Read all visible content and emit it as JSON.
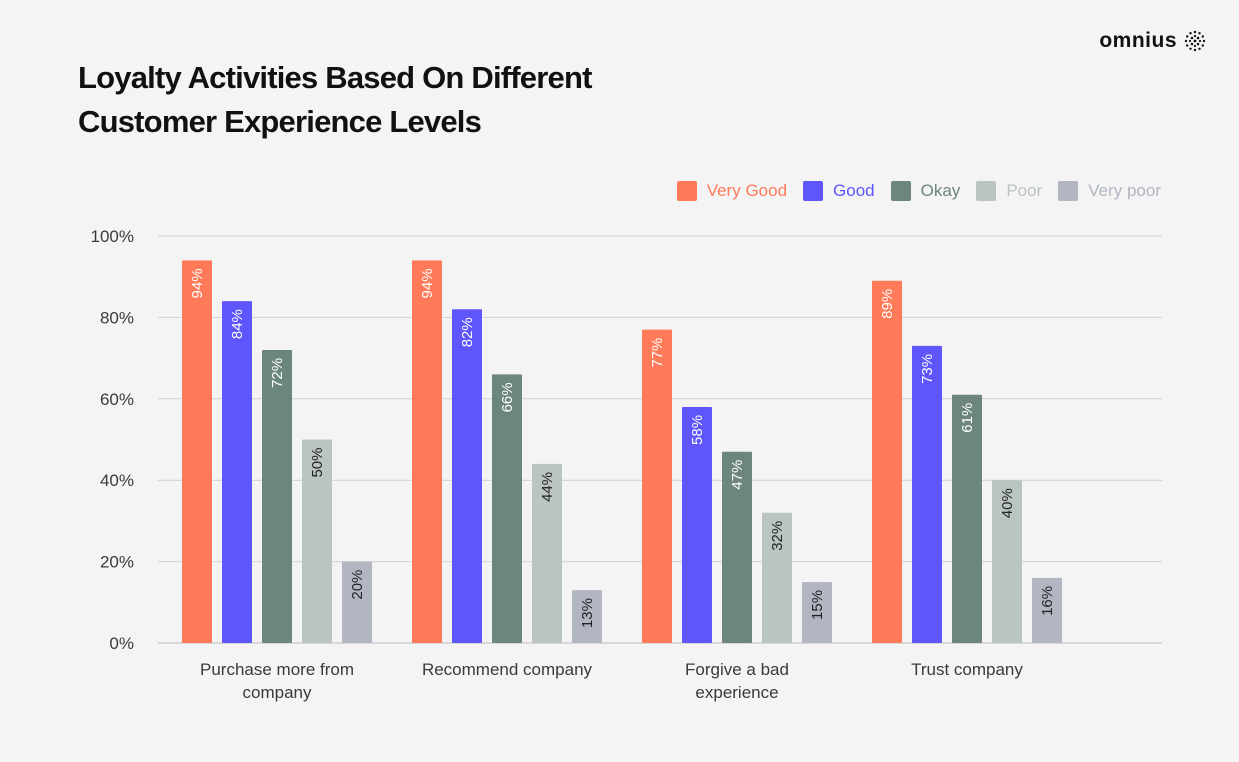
{
  "brand": {
    "name": "omnius",
    "logo_icon": "dotted-sphere-icon"
  },
  "chart_data": {
    "type": "bar",
    "title": "Loyalty Activities Based On Different Customer Experience Levels",
    "xlabel": "",
    "ylabel": "",
    "categories": [
      [
        "Purchase more from",
        "company"
      ],
      [
        "Recommend company"
      ],
      [
        "Forgive a bad",
        "experience"
      ],
      [
        "Trust company"
      ]
    ],
    "series": [
      {
        "name": "Very Good",
        "color": "#ff7a59",
        "values": [
          94,
          94,
          77,
          89
        ],
        "labels": [
          "94%",
          "94%",
          "77%",
          "89%"
        ]
      },
      {
        "name": "Good",
        "color": "#5e55fb",
        "values": [
          84,
          82,
          58,
          73
        ],
        "labels": [
          "84%",
          "82%",
          "58%",
          "73%"
        ]
      },
      {
        "name": "Okay",
        "color": "#6d867b",
        "values": [
          72,
          66,
          47,
          61
        ],
        "labels": [
          "72%",
          "66%",
          "47%",
          "61%"
        ]
      },
      {
        "name": "Poor",
        "color": "#bbc5c0",
        "values": [
          50,
          44,
          32,
          40
        ],
        "labels": [
          "50%",
          "44%",
          "32%",
          "40%"
        ]
      },
      {
        "name": "Very poor",
        "color": "#b1b6c2",
        "values": [
          20,
          13,
          15,
          16
        ],
        "labels": [
          "20%",
          "13%",
          "15%",
          "16%"
        ]
      }
    ],
    "yticks": [
      "0%",
      "20%",
      "40%",
      "60%",
      "80%",
      "100%"
    ],
    "ylim": [
      0,
      100
    ],
    "grid": true,
    "legend_position": "top-right",
    "label_color_light": "#ffffff",
    "label_color_dark": "#222222"
  }
}
